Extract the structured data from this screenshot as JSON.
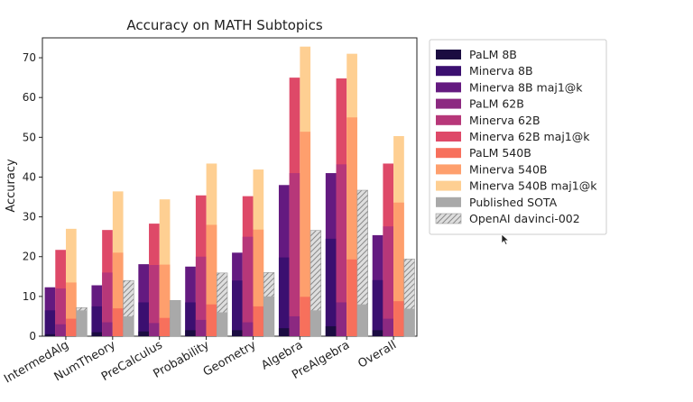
{
  "chart_data": {
    "type": "bar",
    "title": "Accuracy on MATH Subtopics",
    "xlabel": "",
    "ylabel": "Accuracy",
    "ylim": [
      0,
      75
    ],
    "yticks": [
      0,
      10,
      20,
      30,
      40,
      50,
      60,
      70
    ],
    "grid": false,
    "legend_position": "right",
    "categories": [
      "IntermedAlg",
      "NumTheory",
      "PreCalculus",
      "Probability",
      "Geometry",
      "Algebra",
      "PreAlgebra",
      "Overall"
    ],
    "series_colors": {
      "PaLM 8B": "#1b0c41",
      "Minerva 8B": "#3b0f70",
      "Minerva 8B maj1@k": "#641a80",
      "PaLM 62B": "#8c2981",
      "Minerva 62B": "#b73779",
      "Minerva 62B maj1@k": "#de4968",
      "PaLM 540B": "#f7705c",
      "Minerva 540B": "#fe9f6d",
      "Minerva 540B maj1@k": "#fecf92",
      "Published SOTA": "#a9a9a9",
      "OpenAI davinci-002": "#dedede"
    },
    "stacks": [
      {
        "name": "Minerva 8B maj1@k",
        "values": [
          12.3,
          12.8,
          18.1,
          17.5,
          21.0,
          38.0,
          41.0,
          25.4
        ]
      },
      {
        "name": "Minerva 8B",
        "values": [
          6.5,
          7.5,
          8.5,
          8.5,
          14.0,
          19.8,
          24.5,
          14.1
        ]
      },
      {
        "name": "PaLM 8B",
        "values": [
          0.5,
          1.0,
          1.2,
          1.5,
          1.5,
          2.0,
          2.5,
          1.5
        ]
      }
    ],
    "stacks_62": [
      {
        "name": "Minerva 62B maj1@k",
        "values": [
          21.7,
          26.7,
          28.3,
          35.4,
          35.2,
          65.0,
          64.8,
          43.4
        ]
      },
      {
        "name": "Minerva 62B",
        "values": [
          12.0,
          16.0,
          17.9,
          20.0,
          25.0,
          41.0,
          43.2,
          27.6
        ]
      },
      {
        "name": "PaLM 62B",
        "values": [
          3.0,
          3.5,
          3.3,
          4.1,
          3.5,
          5.0,
          8.5,
          4.4
        ]
      }
    ],
    "stacks_540": [
      {
        "name": "Minerva 540B maj1@k",
        "values": [
          27.0,
          36.4,
          34.4,
          43.4,
          41.9,
          72.8,
          71.0,
          50.3
        ]
      },
      {
        "name": "Minerva 540B",
        "values": [
          13.5,
          21.0,
          18.0,
          28.0,
          26.8,
          51.4,
          55.0,
          33.6
        ]
      },
      {
        "name": "PaLM 540B",
        "values": [
          4.4,
          7.0,
          4.6,
          8.0,
          7.5,
          9.9,
          19.3,
          8.8
        ]
      }
    ],
    "series": [
      {
        "name": "PaLM 8B",
        "values": [
          0.5,
          1.0,
          1.2,
          1.5,
          1.5,
          2.0,
          2.5,
          1.5
        ]
      },
      {
        "name": "Minerva 8B",
        "values": [
          6.5,
          7.5,
          8.5,
          8.5,
          14.0,
          19.8,
          24.5,
          14.1
        ]
      },
      {
        "name": "Minerva 8B maj1@k",
        "values": [
          12.3,
          12.8,
          18.1,
          17.5,
          21.0,
          38.0,
          41.0,
          25.4
        ]
      },
      {
        "name": "PaLM 62B",
        "values": [
          3.0,
          3.5,
          3.3,
          4.1,
          3.5,
          5.0,
          8.5,
          4.4
        ]
      },
      {
        "name": "Minerva 62B",
        "values": [
          12.0,
          16.0,
          17.9,
          20.0,
          25.0,
          41.0,
          43.2,
          27.6
        ]
      },
      {
        "name": "Minerva 62B maj1@k",
        "values": [
          21.7,
          26.7,
          28.3,
          35.4,
          35.2,
          65.0,
          64.8,
          43.4
        ]
      },
      {
        "name": "PaLM 540B",
        "values": [
          4.4,
          7.0,
          4.6,
          8.0,
          7.5,
          9.9,
          19.3,
          8.8
        ]
      },
      {
        "name": "Minerva 540B",
        "values": [
          13.5,
          21.0,
          18.0,
          28.0,
          26.8,
          51.4,
          55.0,
          33.6
        ]
      },
      {
        "name": "Minerva 540B maj1@k",
        "values": [
          27.0,
          36.4,
          34.4,
          43.4,
          41.9,
          72.8,
          71.0,
          50.3
        ]
      },
      {
        "name": "Published SOTA",
        "values": [
          6.5,
          5.0,
          9.0,
          6.0,
          10.0,
          6.5,
          8.0,
          6.9
        ]
      },
      {
        "name": "OpenAI davinci-002",
        "values": [
          7.2,
          14.0,
          9.0,
          15.9,
          16.0,
          26.6,
          36.7,
          19.4
        ]
      }
    ]
  }
}
